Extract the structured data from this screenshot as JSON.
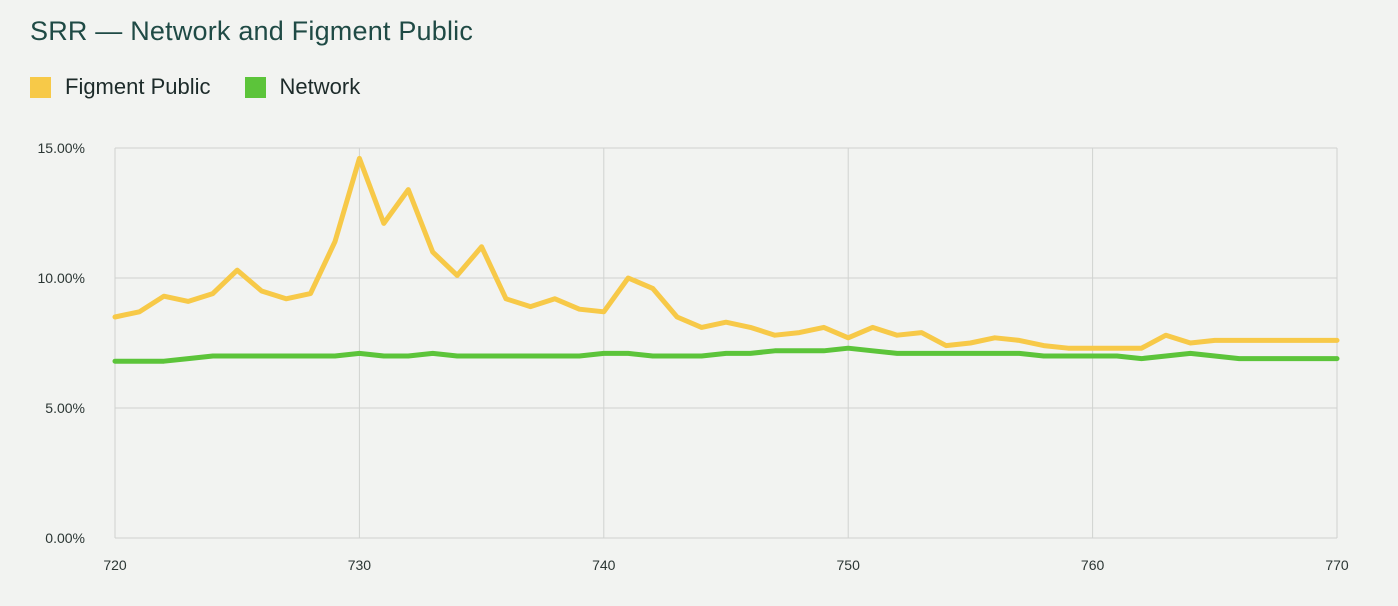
{
  "title": "SRR — Network and Figment Public",
  "colors": {
    "background": "#f2f3f1",
    "grid": "#d0d2d0",
    "figment_public": "#f7c948",
    "network": "#5cc43a",
    "title": "#1f4a45"
  },
  "chart_data": {
    "type": "line",
    "title": "SRR — Network and Figment Public",
    "xlabel": "",
    "ylabel": "",
    "xlim": [
      720,
      770
    ],
    "ylim": [
      0,
      15
    ],
    "x_ticks": [
      720,
      730,
      740,
      750,
      760,
      770
    ],
    "x_tick_labels": [
      "720",
      "730",
      "740",
      "750",
      "760",
      "770"
    ],
    "y_ticks": [
      0,
      5,
      10,
      15
    ],
    "y_tick_labels": [
      "0.00%",
      "5.00%",
      "10.00%",
      "15.00%"
    ],
    "grid": true,
    "legend_position": "top-left",
    "x": [
      720,
      721,
      722,
      723,
      724,
      725,
      726,
      727,
      728,
      729,
      730,
      731,
      732,
      733,
      734,
      735,
      736,
      737,
      738,
      739,
      740,
      741,
      742,
      743,
      744,
      745,
      746,
      747,
      748,
      749,
      750,
      751,
      752,
      753,
      754,
      755,
      756,
      757,
      758,
      759,
      760,
      761,
      762,
      763,
      764,
      765,
      766,
      767,
      768,
      769,
      770
    ],
    "series": [
      {
        "name": "Figment Public",
        "color": "#f7c948",
        "values": [
          8.5,
          8.7,
          9.3,
          9.1,
          9.4,
          10.3,
          9.5,
          9.2,
          9.4,
          11.4,
          14.6,
          12.1,
          13.4,
          11.0,
          10.1,
          11.2,
          9.2,
          8.9,
          9.2,
          8.8,
          8.7,
          10.0,
          9.6,
          8.5,
          8.1,
          8.3,
          8.1,
          7.8,
          7.9,
          8.1,
          7.7,
          8.1,
          7.8,
          7.9,
          7.4,
          7.5,
          7.7,
          7.6,
          7.4,
          7.3,
          7.3,
          7.3,
          7.3,
          7.8,
          7.5,
          7.6,
          7.6,
          7.6,
          7.6,
          7.6,
          7.6
        ]
      },
      {
        "name": "Network",
        "color": "#5cc43a",
        "values": [
          6.8,
          6.8,
          6.8,
          6.9,
          7.0,
          7.0,
          7.0,
          7.0,
          7.0,
          7.0,
          7.1,
          7.0,
          7.0,
          7.1,
          7.0,
          7.0,
          7.0,
          7.0,
          7.0,
          7.0,
          7.1,
          7.1,
          7.0,
          7.0,
          7.0,
          7.1,
          7.1,
          7.2,
          7.2,
          7.2,
          7.3,
          7.2,
          7.1,
          7.1,
          7.1,
          7.1,
          7.1,
          7.1,
          7.0,
          7.0,
          7.0,
          7.0,
          6.9,
          7.0,
          7.1,
          7.0,
          6.9,
          6.9,
          6.9,
          6.9,
          6.9
        ]
      }
    ]
  }
}
